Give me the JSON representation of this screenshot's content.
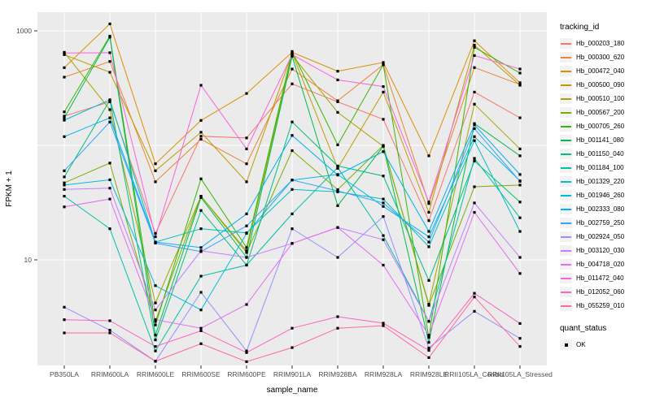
{
  "chart_data": {
    "type": "line",
    "title": "",
    "xlabel": "sample_name",
    "ylabel": "FPKM + 1",
    "y_scale": "log10",
    "y_tick_labels": [
      "1000",
      "10"
    ],
    "y_tick_values": [
      1000,
      10
    ],
    "y_gridline_values": [
      10,
      100,
      1000
    ],
    "ylim_log10": [
      0.078,
      3.163
    ],
    "grid": "on",
    "legend_position": "right",
    "legend_title": "tracking_id",
    "legend2_title": "quant_status",
    "legend2_items": [
      {
        "label": "OK",
        "marker": "black-square"
      }
    ],
    "panel_bg": "#EBEBEB",
    "gridline_color": "#FFFFFF",
    "point_color": "#000000",
    "axis_text_color": "#4D4D4D",
    "categories": [
      "PB350LA",
      "RRIM600LA",
      "RRIM600LE",
      "RRIM600SE",
      "RRIM600PE",
      "RRIM901LA",
      "RRIM928BA",
      "RRIM928LA",
      "RRIM928LE",
      "RRII105LA_Control",
      "RRII105LA_Stressed"
    ],
    "series": [
      {
        "name": "Hb_000203_180",
        "color": "#F8766D",
        "values": [
          180,
          240,
          17,
          120,
          116,
          344,
          240,
          169,
          22,
          292,
          174
        ]
      },
      {
        "name": "Hb_000300_620",
        "color": "#EB8335",
        "values": [
          394,
          540,
          48,
          113,
          69,
          464,
          245,
          505,
          31,
          478,
          340
        ]
      },
      {
        "name": "Hb_000472_040",
        "color": "#D89000",
        "values": [
          477,
          1150,
          69,
          165,
          284,
          650,
          444,
          530,
          81,
          820,
          352
        ]
      },
      {
        "name": "Hb_000500_090",
        "color": "#C09B00",
        "values": [
          620,
          435,
          60,
          130,
          48,
          640,
          63,
          292,
          26,
          750,
          335
        ]
      },
      {
        "name": "Hb_000510_100",
        "color": "#A3A500",
        "values": [
          650,
          205,
          4.2,
          36,
          12,
          615,
          194,
          98,
          4.1,
          229,
          93
        ]
      },
      {
        "name": "Hb_000567_200",
        "color": "#7CAE00",
        "values": [
          47,
          70,
          2.9,
          36,
          11.6,
          90,
          41,
          100,
          4,
          43.5,
          45
        ]
      },
      {
        "name": "Hb_000705_260",
        "color": "#39B600",
        "values": [
          196,
          900,
          2.7,
          51,
          12.8,
          660,
          101,
          505,
          2.1,
          718,
          428
        ]
      },
      {
        "name": "Hb_001141_080",
        "color": "#00BB4E",
        "values": [
          174,
          880,
          2.2,
          35,
          10.5,
          600,
          29.7,
          98,
          1.9,
          155,
          81
        ]
      },
      {
        "name": "Hb_001150_040",
        "color": "#00BF7D",
        "values": [
          53,
          248,
          2.0,
          27,
          9.0,
          160,
          66,
          54,
          6.6,
          73,
          32
        ]
      },
      {
        "name": "Hb_001184_100",
        "color": "#00C1A3",
        "values": [
          36,
          18.7,
          1.6,
          7.2,
          9.0,
          25.2,
          64,
          16.3,
          2.9,
          77,
          23.3
        ]
      },
      {
        "name": "Hb_001329_220",
        "color": "#00BFC4",
        "values": [
          166,
          250,
          14.3,
          18.7,
          17.2,
          41.2,
          39.2,
          34,
          13,
          110,
          17.7
        ]
      },
      {
        "name": "Hb_001946_260",
        "color": "#00BAE0",
        "values": [
          45,
          50,
          5.95,
          3.65,
          17,
          49.8,
          55.6,
          29.3,
          15.9,
          119,
          49
        ]
      },
      {
        "name": "Hb_002333_080",
        "color": "#00B0F6",
        "values": [
          119,
          174,
          14.3,
          12.8,
          25.2,
          122,
          55,
          88.2,
          17.7,
          151,
          55.6
        ]
      },
      {
        "name": "Hb_002759_250",
        "color": "#35A2FF",
        "values": [
          60,
          160,
          14,
          11.8,
          19.8,
          49.8,
          40,
          31.4,
          14.3,
          140,
          48.5
        ]
      },
      {
        "name": "Hb_002924_050",
        "color": "#9590FF",
        "values": [
          3.86,
          2.43,
          1.3,
          5.2,
          1.6,
          18.7,
          10.5,
          23.9,
          1.7,
          3.55,
          2.06
        ]
      },
      {
        "name": "Hb_003120_030",
        "color": "#C77CFF",
        "values": [
          41.2,
          42.3,
          3.65,
          12,
          10.5,
          13.9,
          19.2,
          15.0,
          2.9,
          31.4,
          10.5
        ]
      },
      {
        "name": "Hb_004718_020",
        "color": "#E76BF3",
        "values": [
          29,
          34,
          3.0,
          2.53,
          4.07,
          13.9,
          19.2,
          9.0,
          2.2,
          26,
          7.6
        ]
      },
      {
        "name": "Hb_011472_040",
        "color": "#FA62DB",
        "values": [
          640,
          645,
          15.9,
          335,
          93,
          620,
          373,
          326,
          32,
          609,
          464
        ]
      },
      {
        "name": "Hb_012052_060",
        "color": "#FF62BC",
        "values": [
          3.0,
          2.94,
          1.75,
          2.4,
          1.55,
          2.53,
          3.19,
          2.8,
          1.62,
          5.1,
          2.78
        ]
      },
      {
        "name": "Hb_055259_010",
        "color": "#FF6A98",
        "values": [
          2.3,
          2.3,
          1.3,
          1.85,
          1.29,
          1.71,
          2.53,
          2.66,
          1.4,
          4.74,
          1.75
        ]
      }
    ]
  }
}
